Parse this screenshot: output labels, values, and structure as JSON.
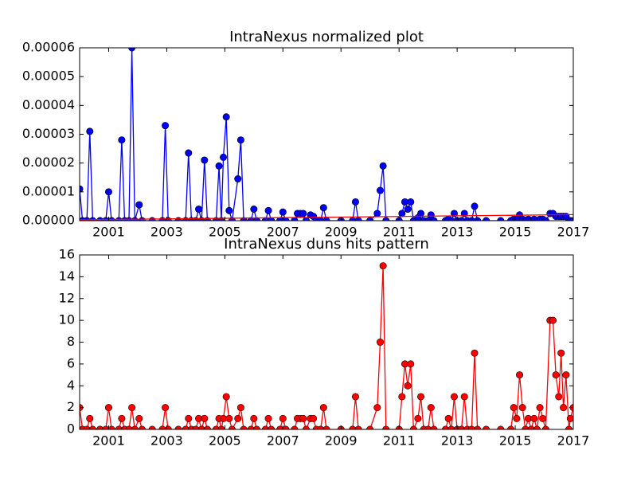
{
  "chart_data": [
    {
      "type": "line",
      "title": "IntraNexus normalized plot",
      "x": [
        2000.0,
        2000.1,
        2000.25,
        2000.35,
        2000.45,
        2000.7,
        2000.9,
        2001.0,
        2001.1,
        2001.35,
        2001.45,
        2001.55,
        2001.7,
        2001.8,
        2001.9,
        2002.05,
        2002.15,
        2002.5,
        2002.85,
        2002.95,
        2003.05,
        2003.4,
        2003.65,
        2003.75,
        2003.85,
        2004.0,
        2004.1,
        2004.2,
        2004.3,
        2004.4,
        2004.7,
        2004.8,
        2004.88,
        2004.95,
        2005.05,
        2005.15,
        2005.25,
        2005.45,
        2005.55,
        2005.65,
        2005.9,
        2006.0,
        2006.1,
        2006.4,
        2006.5,
        2006.6,
        2006.9,
        2007.0,
        2007.1,
        2007.4,
        2007.5,
        2007.6,
        2007.7,
        2007.8,
        2007.95,
        2008.05,
        2008.15,
        2008.3,
        2008.4,
        2008.5,
        2009.0,
        2009.4,
        2009.5,
        2009.6,
        2010.0,
        2010.25,
        2010.35,
        2010.45,
        2010.55,
        2011.0,
        2011.1,
        2011.2,
        2011.3,
        2011.4,
        2011.5,
        2011.65,
        2011.75,
        2011.85,
        2012.0,
        2012.1,
        2012.2,
        2012.6,
        2012.7,
        2012.8,
        2012.9,
        2013.0,
        2013.15,
        2013.25,
        2013.35,
        2013.5,
        2013.6,
        2013.7,
        2014.0,
        2014.5,
        2014.85,
        2014.95,
        2015.05,
        2015.15,
        2015.25,
        2015.35,
        2015.45,
        2015.55,
        2015.65,
        2015.75,
        2015.85,
        2015.95,
        2016.05,
        2016.2,
        2016.3,
        2016.4,
        2016.5,
        2016.58,
        2016.66,
        2016.75,
        2016.85,
        2016.9,
        2017.0
      ],
      "series": [
        {
          "color": "#0000ff",
          "marker": true,
          "values": [
            1.1e-05,
            0,
            0,
            3.1e-05,
            0,
            0,
            0,
            1e-05,
            0,
            0,
            2.8e-05,
            0,
            0,
            6e-05,
            0,
            5.5e-06,
            0,
            0,
            0,
            3.3e-05,
            0,
            0,
            0,
            2.35e-05,
            0,
            0,
            4e-06,
            0,
            2.1e-05,
            0,
            0,
            1.9e-05,
            0,
            2.2e-05,
            3.6e-05,
            3.5e-06,
            0,
            1.45e-05,
            2.8e-05,
            0,
            0,
            4e-06,
            0,
            0,
            3.5e-06,
            0,
            0,
            3e-06,
            0,
            0,
            2.5e-06,
            2.5e-06,
            2.5e-06,
            0,
            2e-06,
            1.5e-06,
            0,
            0,
            4.5e-06,
            0,
            0,
            0,
            6.5e-06,
            0,
            0,
            2.5e-06,
            1.05e-05,
            1.9e-05,
            0,
            0,
            2.5e-06,
            6.5e-06,
            4e-06,
            6.5e-06,
            0,
            1e-06,
            2.5e-06,
            0,
            0,
            2e-06,
            0,
            0,
            5e-07,
            0,
            2.5e-06,
            0,
            0,
            2.5e-06,
            0,
            0,
            5e-06,
            0,
            0,
            0,
            0,
            5e-07,
            5e-07,
            2e-06,
            5e-07,
            0,
            5e-07,
            0,
            5e-07,
            0,
            5e-07,
            5e-07,
            0,
            2.5e-06,
            2.5e-06,
            1.5e-06,
            1.5e-06,
            1.5e-06,
            1.5e-06,
            1.5e-06,
            0,
            0,
            0
          ]
        },
        {
          "color": "#ff0000",
          "marker": false,
          "x": [
            2000,
            2017
          ],
          "values": [
            3e-07,
            2.1e-06
          ]
        }
      ],
      "xlim": [
        2000,
        2017
      ],
      "xticks": [
        2001,
        2003,
        2005,
        2007,
        2009,
        2011,
        2013,
        2015,
        2017
      ],
      "ylim": [
        0,
        6e-05
      ],
      "yticks": [
        {
          "value": 0,
          "label": "0.00000"
        },
        {
          "value": 1e-05,
          "label": "0.00001"
        },
        {
          "value": 2e-05,
          "label": "0.00002"
        },
        {
          "value": 3e-05,
          "label": "0.00003"
        },
        {
          "value": 4e-05,
          "label": "0.00004"
        },
        {
          "value": 5e-05,
          "label": "0.00005"
        },
        {
          "value": 6e-05,
          "label": "0.00006"
        }
      ]
    },
    {
      "type": "line",
      "title": "IntraNexus duns hits pattern",
      "x": [
        2000.0,
        2000.1,
        2000.25,
        2000.35,
        2000.45,
        2000.7,
        2000.9,
        2001.0,
        2001.1,
        2001.35,
        2001.45,
        2001.55,
        2001.7,
        2001.8,
        2001.9,
        2002.05,
        2002.15,
        2002.5,
        2002.85,
        2002.95,
        2003.05,
        2003.4,
        2003.65,
        2003.75,
        2003.85,
        2004.0,
        2004.1,
        2004.2,
        2004.3,
        2004.4,
        2004.7,
        2004.8,
        2004.88,
        2004.95,
        2005.05,
        2005.15,
        2005.25,
        2005.45,
        2005.55,
        2005.65,
        2005.9,
        2006.0,
        2006.1,
        2006.4,
        2006.5,
        2006.6,
        2006.9,
        2007.0,
        2007.1,
        2007.4,
        2007.5,
        2007.6,
        2007.7,
        2007.8,
        2007.95,
        2008.05,
        2008.15,
        2008.3,
        2008.4,
        2008.5,
        2009.0,
        2009.4,
        2009.5,
        2009.6,
        2010.0,
        2010.25,
        2010.35,
        2010.45,
        2010.55,
        2011.0,
        2011.1,
        2011.2,
        2011.3,
        2011.4,
        2011.5,
        2011.65,
        2011.75,
        2011.85,
        2012.0,
        2012.1,
        2012.2,
        2012.6,
        2012.7,
        2012.8,
        2012.9,
        2013.0,
        2013.15,
        2013.25,
        2013.35,
        2013.5,
        2013.6,
        2013.7,
        2014.0,
        2014.5,
        2014.85,
        2014.95,
        2015.05,
        2015.15,
        2015.25,
        2015.35,
        2015.45,
        2015.55,
        2015.65,
        2015.75,
        2015.85,
        2015.95,
        2016.05,
        2016.2,
        2016.3,
        2016.4,
        2016.5,
        2016.58,
        2016.66,
        2016.75,
        2016.85,
        2016.9,
        2017.0
      ],
      "series": [
        {
          "color": "#ff0000",
          "marker": true,
          "values": [
            2,
            0,
            0,
            1,
            0,
            0,
            0,
            2,
            0,
            0,
            1,
            0,
            0,
            2,
            0,
            1,
            0,
            0,
            0,
            2,
            0,
            0,
            0,
            1,
            0,
            0,
            1,
            0,
            1,
            0,
            0,
            1,
            0,
            1,
            3,
            1,
            0,
            1,
            2,
            0,
            0,
            1,
            0,
            0,
            1,
            0,
            0,
            1,
            0,
            0,
            1,
            1,
            1,
            0,
            1,
            1,
            0,
            0,
            2,
            0,
            0,
            0,
            3,
            0,
            0,
            2,
            8,
            15,
            0,
            0,
            3,
            6,
            4,
            6,
            0,
            1,
            3,
            0,
            0,
            2,
            0,
            0,
            1,
            0,
            3,
            0,
            0,
            3,
            0,
            0,
            7,
            0,
            0,
            0,
            0,
            2,
            1,
            5,
            2,
            0,
            1,
            0,
            1,
            0,
            2,
            1,
            0,
            10,
            10,
            5,
            3,
            7,
            2,
            5,
            0,
            1,
            2
          ]
        }
      ],
      "xlim": [
        2000,
        2017
      ],
      "xticks": [
        2001,
        2003,
        2005,
        2007,
        2009,
        2011,
        2013,
        2015,
        2017
      ],
      "ylim": [
        0,
        16
      ],
      "yticks": [
        0,
        2,
        4,
        6,
        8,
        10,
        12,
        14,
        16
      ]
    }
  ]
}
